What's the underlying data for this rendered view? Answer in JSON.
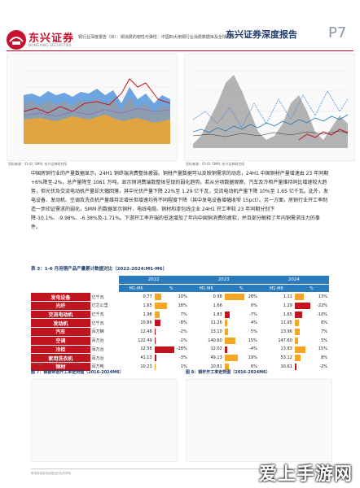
{
  "header": {
    "logo_cn": "东兴证券",
    "logo_en": "DONGXING SECURITIES",
    "subtitle": "铜行业深度报告（III）：铜消费的韧性与弹性：中国四大用铜行业消费数据库及全球展望",
    "report_title": "东兴证券深度报告",
    "page": "P7"
  },
  "top_charts": {
    "left_source": "资料来源：iFinD, SMM, 东兴证券研究所",
    "right_source": "资料来源：iFinD, SMM, 东兴证券研究所"
  },
  "body": {
    "paragraph": "中国房铜行业的产量数据显示，24H1 铜终端消费整体疲弱。铜材产量数据可以反映铜需求的动态，24H1 中国铜材产量增速由 23 年同期+6%降至-2%，总产量降至 1061 万吨，显示铜消费端数整体呈现的弱化趋势。若从分项数据观察，汽车及冷柜产量维持同比增速较大趋势，但光伏及交流电动机产量却大幅回落，其中光伏产量下降 22%至 1.29 亿千瓦，交流电动机产量下降 10%至 1.65 亿千瓦。此外，发电设备、发动机、空调及洗衣机产量维持正增长但增速均有不同程度下降（其中发电设备增幅收窄 15pct）。另一方面，房铜行业开工率制造一步印证需求的弱化，SMM 的数据显示铜杆、电线电缆、铜材和漆包线企业 24H1 开工率较 23 年同期分别下降-10.1%、-9.98%、-6.38%及-1.71%。下游开工率开端的低迷增加了年内中国铜消费的疲软，并且部分解释了年内铜需求压力的事件。"
  },
  "table": {
    "title": "表 3：1-6 月用铜产品产量累计数据对比（2022-2024:M1-M6）",
    "years": [
      "2022",
      "2023",
      "2024"
    ],
    "subheaders": [
      "M1-M6",
      "%",
      "M1-M6",
      "%",
      "M1-M6",
      "%"
    ],
    "rows": [
      {
        "label": "发电设备",
        "unit": "亿千瓦",
        "v22": "0.77",
        "p22": "10%",
        "v23": "0.98",
        "p23": "28%",
        "v24": "1.11",
        "p24": "13%"
      },
      {
        "label": "光纤",
        "unit": "亿芯公里",
        "v22": "1.65",
        "p22": "18%",
        "v23": "1.66",
        "p23": "0%",
        "v24": "1.29",
        "p24": "-22%"
      },
      {
        "label": "交流电动机",
        "unit": "亿千瓦",
        "v22": "1.98",
        "p22": "7%",
        "v23": "1.83",
        "p23": "-7%",
        "v24": "1.65",
        "p24": "-10%"
      },
      {
        "label": "发动机",
        "unit": "亿千瓦",
        "v22": "10.86",
        "p22": "-8%",
        "v23": "11.26",
        "p23": "4%",
        "v24": "11.95",
        "p24": "6%"
      },
      {
        "label": "汽车",
        "unit": "百万辆",
        "v22": "12.48",
        "p22": "-2%",
        "v23": "13.10",
        "p23": "5%",
        "v24": "13.96",
        "p24": "7%"
      },
      {
        "label": "空调",
        "unit": "百万台",
        "v22": "122.49",
        "p22": "-1%",
        "v23": "140.60",
        "p23": "15%",
        "v24": "147.60",
        "p24": "5%"
      },
      {
        "label": "冷柜",
        "unit": "百万台",
        "v22": "12.58",
        "p22": "-28%",
        "v23": "12.02",
        "p23": "-4%",
        "v24": "13.83",
        "p24": "15%"
      },
      {
        "label": "家用洗衣机",
        "unit": "百万台",
        "v22": "41.13",
        "p22": "-3%",
        "v23": "49.13",
        "p23": "19%",
        "v24": "53.12",
        "p24": "8%"
      },
      {
        "label": "铜材",
        "unit": "百万吨",
        "v22": "10.23",
        "p22": "1%",
        "v23": "10.81",
        "p23": "6%",
        "v24": "10.61",
        "p24": "-2%"
      }
    ],
    "pct_values": [
      [
        10,
        28,
        13
      ],
      [
        18,
        0,
        -22
      ],
      [
        7,
        -7,
        -10
      ],
      [
        -8,
        4,
        6
      ],
      [
        -2,
        5,
        7
      ],
      [
        -1,
        15,
        5
      ],
      [
        -28,
        -4,
        15
      ],
      [
        -3,
        19,
        8
      ],
      [
        1,
        6,
        -2
      ]
    ],
    "source": "资料来源：iFinD, 东兴证券研究所",
    "colors": {
      "positive": "#f5a623",
      "negative": "#c0141e",
      "header": "#2a7bbd"
    }
  },
  "bottom": {
    "fig7": "图 7：铜板带箔开工率走势图（2016-2024M6）",
    "fig8": "图 8：铜杆开工率走势图（2016-2024M6）"
  },
  "footer": {
    "text": "敬请参阅报告结尾处的免责声明"
  },
  "watermark": "爱上手游网"
}
